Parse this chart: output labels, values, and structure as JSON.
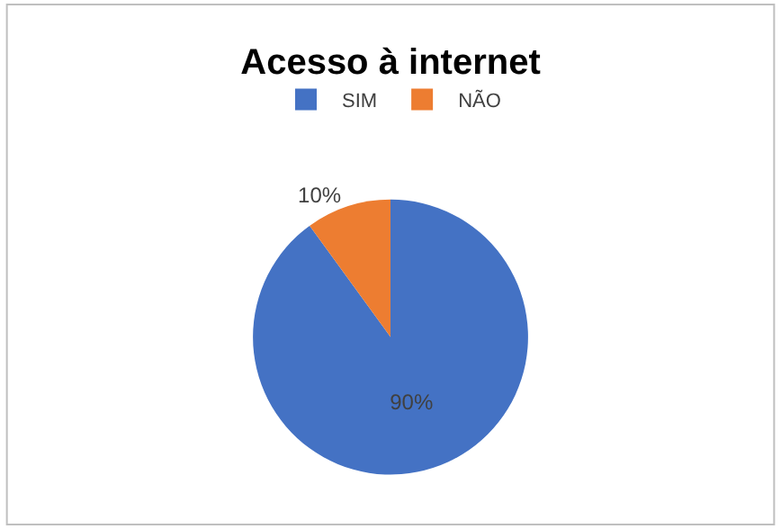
{
  "chart_data": {
    "type": "pie",
    "title": "Acesso à internet",
    "categories": [
      "SIM",
      "NÃO"
    ],
    "values": [
      90,
      10
    ],
    "colors": [
      "#4472c4",
      "#ed7d31"
    ],
    "value_labels": [
      "90%",
      "10%"
    ],
    "legend": "top"
  }
}
